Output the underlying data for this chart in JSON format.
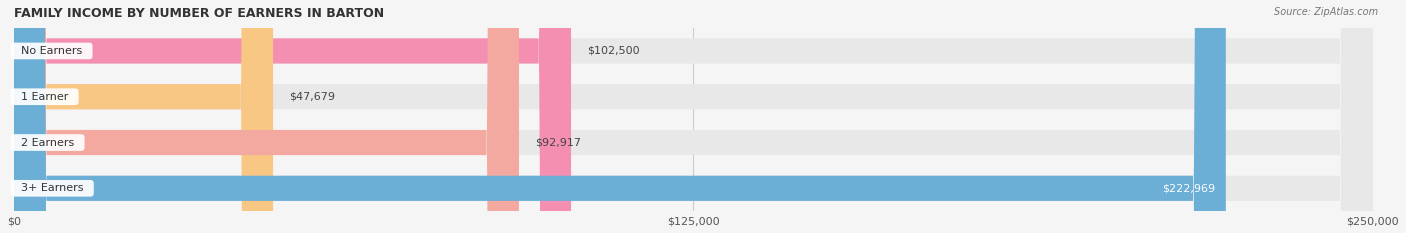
{
  "title": "FAMILY INCOME BY NUMBER OF EARNERS IN BARTON",
  "source": "Source: ZipAtlas.com",
  "categories": [
    "No Earners",
    "1 Earner",
    "2 Earners",
    "3+ Earners"
  ],
  "values": [
    102500,
    47679,
    92917,
    222969
  ],
  "bar_colors": [
    "#f48fb1",
    "#f9c784",
    "#f4a9a0",
    "#6baed6"
  ],
  "label_colors": [
    "#f48fb1",
    "#f9c784",
    "#f4a9a0",
    "#6baed6"
  ],
  "xlim": [
    0,
    250000
  ],
  "xticks": [
    0,
    125000,
    250000
  ],
  "xtick_labels": [
    "$0",
    "$125,000",
    "$250,000"
  ],
  "bg_color": "#f5f5f5",
  "bar_bg_color": "#e8e8e8",
  "value_label_inside_threshold": 200000,
  "figsize": [
    14.06,
    2.33
  ],
  "dpi": 100
}
